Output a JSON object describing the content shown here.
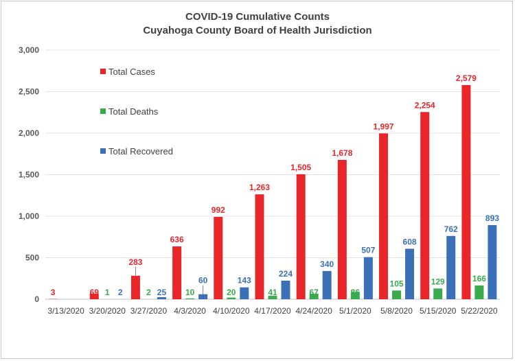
{
  "chart_data": {
    "type": "bar",
    "title": "COVID-19 Cumulative Counts",
    "subtitle": "Cuyahoga County Board of Health Jurisdiction",
    "categories": [
      "3/13/2020",
      "3/20/2020",
      "3/27/2020",
      "4/3/2020",
      "4/10/2020",
      "4/17/2020",
      "4/24/2020",
      "5/1/2020",
      "5/8/2020",
      "5/15/2020",
      "5/22/2020"
    ],
    "series": [
      {
        "name": "Total Cases",
        "color": "#e8262a",
        "values": [
          3,
          69,
          283,
          636,
          992,
          1263,
          1505,
          1678,
          1997,
          2254,
          2579
        ],
        "labels": [
          "3",
          "69",
          "283",
          "636",
          "992",
          "1,263",
          "1,505",
          "1,678",
          "1,997",
          "2,254",
          "2,579"
        ]
      },
      {
        "name": "Total Deaths",
        "color": "#3aaa4f",
        "values": [
          0,
          1,
          2,
          10,
          20,
          41,
          67,
          86,
          105,
          129,
          166
        ],
        "labels": [
          "",
          "1",
          "2",
          "10",
          "20",
          "41",
          "67",
          "86",
          "105",
          "129",
          "166"
        ]
      },
      {
        "name": "Total Recovered",
        "color": "#3b6fb6",
        "values": [
          0,
          2,
          25,
          60,
          143,
          224,
          340,
          507,
          608,
          762,
          893
        ],
        "labels": [
          "",
          "2",
          "25",
          "60",
          "143",
          "224",
          "340",
          "507",
          "608",
          "762",
          "893"
        ]
      }
    ],
    "yticks": [
      "0",
      "500",
      "1,000",
      "1,500",
      "2,000",
      "2,500",
      "3,000"
    ],
    "ylim": [
      0,
      3000
    ],
    "grid": true,
    "legend": "top-left"
  }
}
